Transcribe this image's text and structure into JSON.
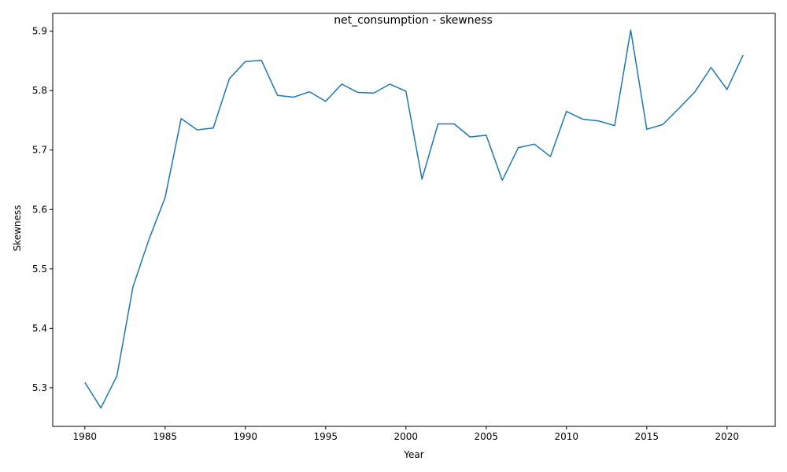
{
  "chart_data": {
    "type": "line",
    "title": "net_consumption - skewness",
    "xlabel": "Year",
    "ylabel": "Skewness",
    "xlim": [
      1978,
      2023
    ],
    "ylim": [
      5.235,
      5.93
    ],
    "grid": false,
    "x_ticks": [
      1980,
      1985,
      1990,
      1995,
      2000,
      2005,
      2010,
      2015,
      2020
    ],
    "y_ticks": [
      5.3,
      5.4,
      5.5,
      5.6,
      5.7,
      5.8,
      5.9
    ],
    "line_color": "#1f77b4",
    "series": [
      {
        "x": [
          1980,
          1981,
          1982,
          1983,
          1984,
          1985,
          1986,
          1987,
          1988,
          1989,
          1990,
          1991,
          1992,
          1993,
          1994,
          1995,
          1996,
          1997,
          1998,
          1999,
          2000,
          2001,
          2002,
          2003,
          2004,
          2005,
          2006,
          2007,
          2008,
          2009,
          2010,
          2011,
          2012,
          2013,
          2014,
          2015,
          2016,
          2017,
          2018,
          2019,
          2020,
          2021
        ],
        "values": [
          5.309,
          5.266,
          5.32,
          5.47,
          5.55,
          5.62,
          5.753,
          5.734,
          5.737,
          5.82,
          5.849,
          5.851,
          5.792,
          5.789,
          5.798,
          5.782,
          5.811,
          5.797,
          5.796,
          5.811,
          5.799,
          5.651,
          5.744,
          5.744,
          5.722,
          5.725,
          5.649,
          5.704,
          5.71,
          5.689,
          5.765,
          5.752,
          5.749,
          5.741,
          5.902,
          5.735,
          5.743,
          5.77,
          5.798,
          5.839,
          5.802,
          5.86
        ]
      }
    ]
  }
}
